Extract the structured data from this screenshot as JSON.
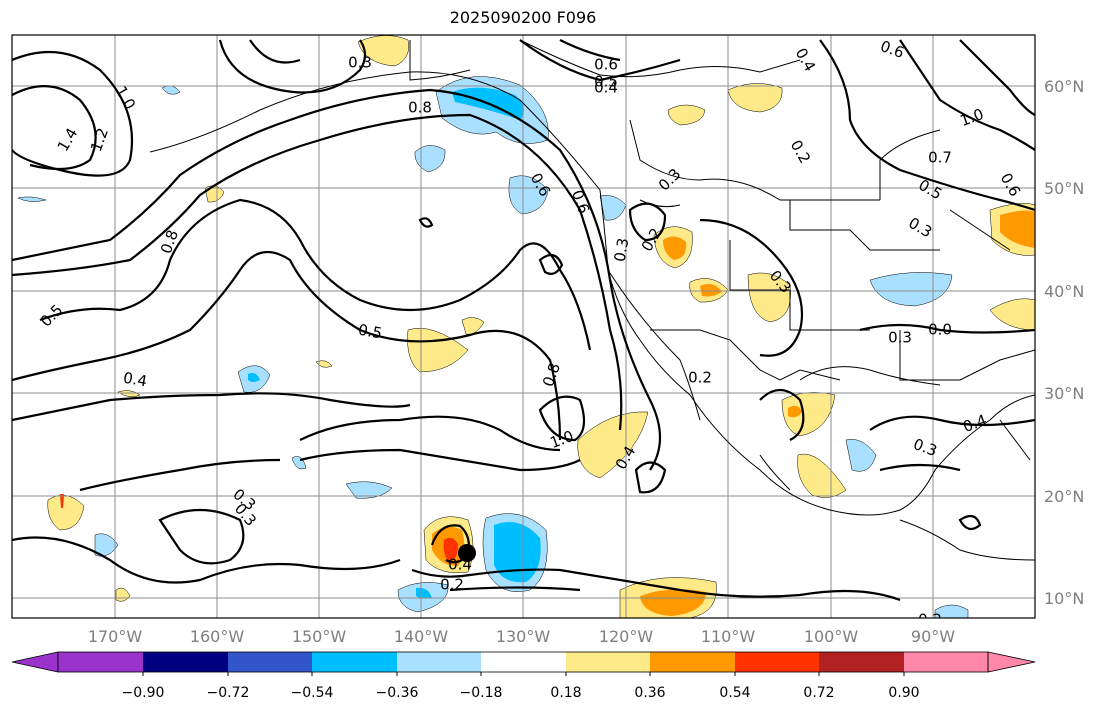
{
  "title": "2025090200 F096",
  "map": {
    "lon_range": [
      -180,
      -80
    ],
    "lat_range": [
      8,
      65
    ],
    "lat_labels": [
      "60°N",
      "50°N",
      "40°N",
      "30°N",
      "20°N",
      "10°N"
    ],
    "lon_labels": [
      "170°W",
      "160°W",
      "150°W",
      "140°W",
      "130°W",
      "120°W",
      "110°W",
      "100°W",
      "90°W"
    ],
    "contour_labels": [
      "0.3",
      "0.6",
      "0.5",
      "0.4",
      "0.8",
      "1.0",
      "1.4",
      "1.2",
      "0.8",
      "0.5",
      "0.5",
      "0.4",
      "0.3",
      "0.6",
      "0.3",
      "0.2",
      "0.6",
      "0.3",
      "0.8",
      "1.0",
      "0.4",
      "0.2",
      "0.4",
      "0.2",
      "0.3",
      "0.6",
      "0.4",
      "1.0",
      "0.7",
      "0.5",
      "0.6",
      "0.3",
      "0.3",
      "0.3",
      "0.0",
      "0.4",
      "0.3",
      "0.2",
      "0.2"
    ],
    "storm_marker": "storm-center"
  },
  "colorbar": {
    "colors": [
      "#9933cc",
      "#000080",
      "#3355cc",
      "#00bfff",
      "#aae0ff",
      "#ffffff",
      "#ffea8a",
      "#ff9900",
      "#ff3300",
      "#b22222",
      "#ff88aa"
    ],
    "tick_labels": [
      "−0.90",
      "−0.72",
      "−0.54",
      "−0.36",
      "−0.18",
      "0.18",
      "0.36",
      "0.54",
      "0.72",
      "0.90"
    ]
  }
}
